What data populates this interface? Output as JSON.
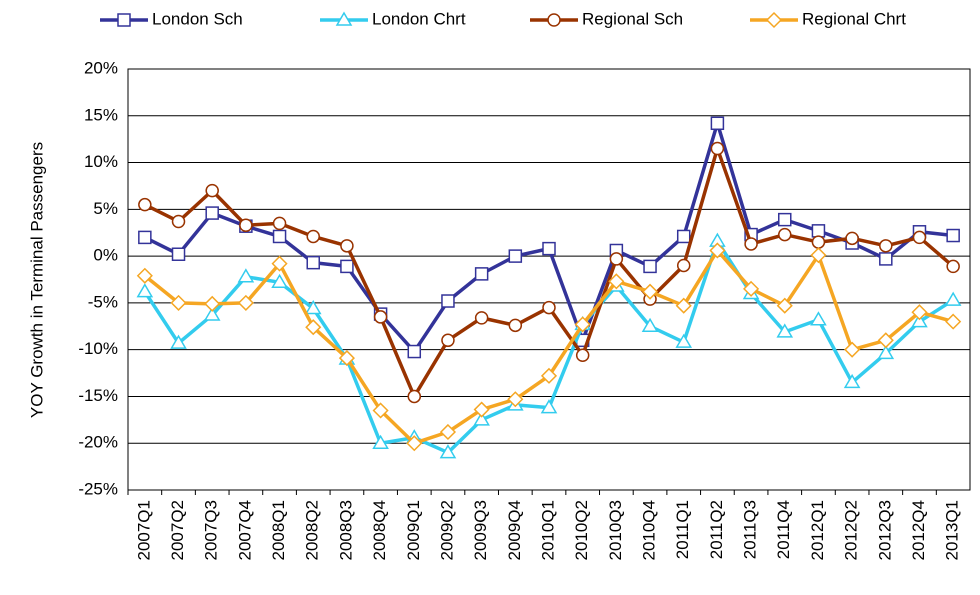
{
  "chart_data": {
    "type": "line",
    "y_label": "YOY Growth in Terminal Passengers",
    "categories": [
      "2007Q1",
      "2007Q2",
      "2007Q3",
      "2007Q4",
      "2008Q1",
      "2008Q2",
      "2008Q3",
      "2008Q4",
      "2009Q1",
      "2009Q2",
      "2009Q3",
      "2009Q4",
      "2010Q1",
      "2010Q2",
      "2010Q3",
      "2010Q4",
      "2011Q1",
      "2011Q2",
      "2011Q3",
      "2011Q4",
      "2012Q1",
      "2012Q2",
      "2012Q3",
      "2012Q4",
      "2013Q1"
    ],
    "series": [
      {
        "name": "London Sch",
        "color": "#333399",
        "marker": "square",
        "values": [
          2,
          0.2,
          4.6,
          3.2,
          2.1,
          -0.7,
          -1.1,
          -6.2,
          -10.2,
          -4.8,
          -1.9,
          0,
          0.8,
          -9,
          0.6,
          -1.1,
          2.1,
          14.2,
          2.3,
          3.9,
          2.7,
          1.4,
          -0.3,
          2.6,
          2.2
        ]
      },
      {
        "name": "London Chrt",
        "color": "#33ccee",
        "marker": "triangle",
        "values": [
          -3.8,
          -9.3,
          -6.3,
          -2.2,
          -2.8,
          -5.6,
          -11,
          -20,
          -19.4,
          -21,
          -17.5,
          -15.9,
          -16.2,
          -7.3,
          -3.2,
          -7.5,
          -9.2,
          1.6,
          -4,
          -8.1,
          -6.8,
          -13.5,
          -10.4,
          -7,
          -4.7
        ]
      },
      {
        "name": "Regional Sch",
        "color": "#993300",
        "marker": "circle",
        "values": [
          5.5,
          3.7,
          7,
          3.3,
          3.5,
          2.1,
          1.1,
          -6.5,
          -15,
          -9,
          -6.6,
          -7.4,
          -5.5,
          -10.6,
          -0.3,
          -4.6,
          -1,
          11.5,
          1.3,
          2.3,
          1.5,
          1.9,
          1.1,
          2,
          -1.1
        ]
      },
      {
        "name": "Regional Chrt",
        "color": "#f5a623",
        "marker": "diamond",
        "values": [
          -2.1,
          -5,
          -5.1,
          -5,
          -0.8,
          -7.6,
          -10.9,
          -16.5,
          -20,
          -18.8,
          -16.4,
          -15.3,
          -12.8,
          -7.3,
          -2.7,
          -3.8,
          -5.3,
          0.6,
          -3.5,
          -5.3,
          0.1,
          -10,
          -9,
          -6,
          -7
        ]
      }
    ],
    "ylim": [
      -25,
      20
    ],
    "yticks": [
      {
        "value": -25,
        "label": "-25%"
      },
      {
        "value": -20,
        "label": "-20%"
      },
      {
        "value": -15,
        "label": "-15%"
      },
      {
        "value": -10,
        "label": "-10%"
      },
      {
        "value": -5,
        "label": "-5%"
      },
      {
        "value": 0,
        "label": "0%"
      },
      {
        "value": 5,
        "label": "5%"
      },
      {
        "value": 10,
        "label": "10%"
      },
      {
        "value": 15,
        "label": "15%"
      },
      {
        "value": 20,
        "label": "20%"
      }
    ],
    "grid": true,
    "legend": "top"
  }
}
